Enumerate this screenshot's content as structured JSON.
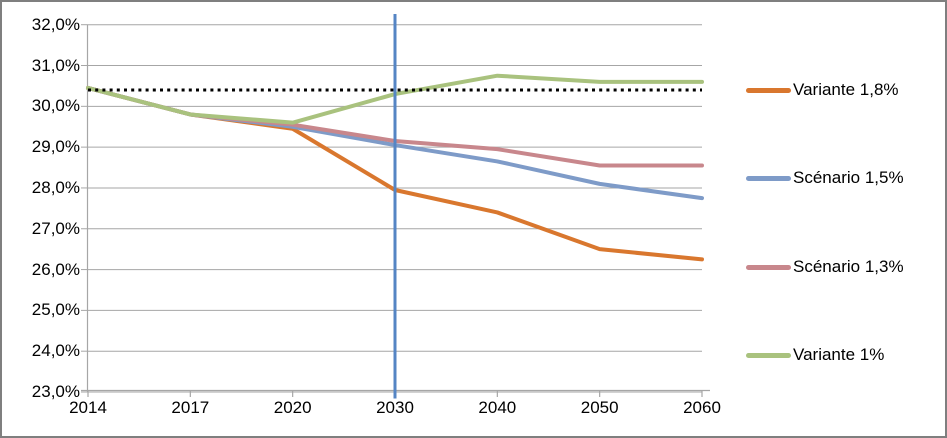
{
  "figure": {
    "background": "#ffffff",
    "border_color": "#7f7f7f"
  },
  "chart_data": {
    "type": "line",
    "title": "",
    "xlabel": "",
    "ylabel": "",
    "categories": [
      "2014",
      "2017",
      "2020",
      "2030",
      "2040",
      "2050",
      "2060"
    ],
    "series": [
      {
        "name": "Variante 1,8%",
        "color": "#d9772e",
        "values": [
          30.45,
          29.8,
          29.45,
          27.95,
          27.4,
          26.5,
          26.25
        ]
      },
      {
        "name": "Scénario 1,5%",
        "color": "#7e9bc8",
        "values": [
          30.45,
          29.8,
          29.5,
          29.05,
          28.65,
          28.1,
          27.75
        ]
      },
      {
        "name": "Scénario 1,3%",
        "color": "#c8878c",
        "values": [
          30.45,
          29.8,
          29.55,
          29.15,
          28.95,
          28.55,
          28.55
        ]
      },
      {
        "name": "Variante 1%",
        "color": "#a9c27e",
        "values": [
          30.45,
          29.8,
          29.6,
          30.3,
          30.75,
          30.6,
          30.6
        ]
      }
    ],
    "reference_line": {
      "value": 30.4,
      "style": "dotted",
      "color": "#000000"
    },
    "vertical_marker": {
      "category": "2030",
      "color": "#5585c4"
    },
    "y_axis": {
      "tick_labels": [
        "32,0%",
        "31,0%",
        "30,0%",
        "29,0%",
        "28,0%",
        "27,0%",
        "26,0%",
        "25,0%",
        "24,0%",
        "23,0%"
      ],
      "tick_values": [
        32,
        31,
        30,
        29,
        28,
        27,
        26,
        25,
        24,
        23
      ],
      "min": 23.0,
      "max": 32.0
    },
    "x_axis": {
      "tick_labels": [
        "2014",
        "2017",
        "2020",
        "2030",
        "2040",
        "2050",
        "2060"
      ]
    },
    "grid": true,
    "grid_color": "#a6a6a6",
    "legend_position": "right"
  }
}
